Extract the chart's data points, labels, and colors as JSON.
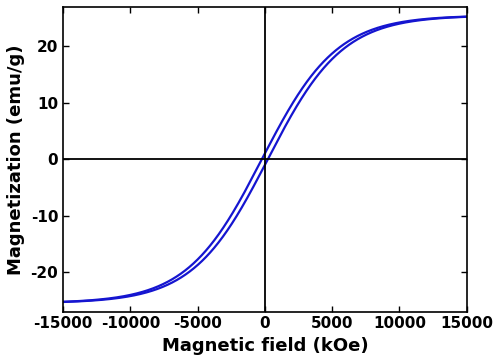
{
  "xlabel": "Magnetic field (kOe)",
  "ylabel": "Magnetization (emu/g)",
  "xlim": [
    -15000,
    15000
  ],
  "ylim": [
    -27,
    27
  ],
  "xticks": [
    -15000,
    -10000,
    -5000,
    0,
    5000,
    10000,
    15000
  ],
  "yticks": [
    -20,
    -10,
    0,
    10,
    20
  ],
  "curve_color": "#1515d0",
  "curve_linewidth": 1.6,
  "Ms": 25.5,
  "Hc": 220,
  "k": 0.00018,
  "background_color": "#ffffff",
  "axline_color": "black",
  "axline_linewidth": 1.3,
  "xlabel_fontsize": 13,
  "ylabel_fontsize": 13,
  "tick_fontsize": 11,
  "xlabel_fontweight": "bold",
  "ylabel_fontweight": "bold",
  "tick_fontweight": "bold"
}
